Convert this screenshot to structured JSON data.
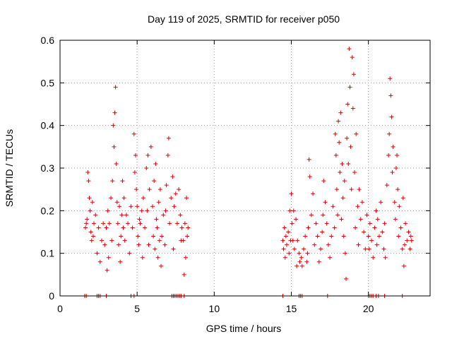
{
  "chart_data": {
    "type": "scatter",
    "title": "Day 119 of 2025, SRMTID for receiver p050",
    "xlabel": "GPS time / hours",
    "ylabel": "SRMTID / TECUs",
    "xlim": [
      0,
      24
    ],
    "ylim": [
      0,
      0.6
    ],
    "xticks": [
      0,
      5,
      10,
      15,
      20
    ],
    "xtick_labels": [
      "0",
      "5",
      "10",
      "15",
      "20"
    ],
    "yticks": [
      0,
      0.1,
      0.2,
      0.3,
      0.4,
      0.5,
      0.6
    ],
    "ytick_labels": [
      "0",
      "0.1",
      "0.2",
      "0.3",
      "0.4",
      "0.5",
      "0.6"
    ],
    "grid": true,
    "marker": "plus",
    "color": "#dd0000",
    "series": [
      {
        "name": "SRMTID",
        "points": [
          [
            1.65,
            0.16
          ],
          [
            1.7,
            0.17
          ],
          [
            1.75,
            0.18
          ],
          [
            1.8,
            0.29
          ],
          [
            1.85,
            0.27
          ],
          [
            1.9,
            0.23
          ],
          [
            1.95,
            0.2
          ],
          [
            2.0,
            0.15
          ],
          [
            2.05,
            0.13
          ],
          [
            2.1,
            0.22
          ],
          [
            2.15,
            0.14
          ],
          [
            2.2,
            0.17
          ],
          [
            2.3,
            0.19
          ],
          [
            2.4,
            0.1
          ],
          [
            2.5,
            0.16
          ],
          [
            2.6,
            0.08
          ],
          [
            2.7,
            0.13
          ],
          [
            2.8,
            0.17
          ],
          [
            2.9,
            0.12
          ],
          [
            3.0,
            0.16
          ],
          [
            3.05,
            0.06
          ],
          [
            3.1,
            0.2
          ],
          [
            3.15,
            0.09
          ],
          [
            3.2,
            0.17
          ],
          [
            3.3,
            0.23
          ],
          [
            3.35,
            0.13
          ],
          [
            3.4,
            0.27
          ],
          [
            3.45,
            0.4
          ],
          [
            3.5,
            0.35
          ],
          [
            3.55,
            0.43
          ],
          [
            3.6,
            0.49
          ],
          [
            3.65,
            0.31
          ],
          [
            3.7,
            0.22
          ],
          [
            3.75,
            0.17
          ],
          [
            3.8,
            0.12
          ],
          [
            3.85,
            0.21
          ],
          [
            3.9,
            0.08
          ],
          [
            3.95,
            0.14
          ],
          [
            4.0,
            0.19
          ],
          [
            4.05,
            0.27
          ],
          [
            4.1,
            0.16
          ],
          [
            4.15,
            0.23
          ],
          [
            4.2,
            0.13
          ],
          [
            4.3,
            0.19
          ],
          [
            4.4,
            0.17
          ],
          [
            4.5,
            0.1
          ],
          [
            4.6,
            0.21
          ],
          [
            4.7,
            0.16
          ],
          [
            4.8,
            0.38
          ],
          [
            4.85,
            0.29
          ],
          [
            4.9,
            0.33
          ],
          [
            4.95,
            0.25
          ],
          [
            5.0,
            0.21
          ],
          [
            5.05,
            0.14
          ],
          [
            5.1,
            0.12
          ],
          [
            5.15,
            0.18
          ],
          [
            5.2,
            0.17
          ],
          [
            5.3,
            0.2
          ],
          [
            5.35,
            0.09
          ],
          [
            5.4,
            0.23
          ],
          [
            5.5,
            0.16
          ],
          [
            5.6,
            0.3
          ],
          [
            5.65,
            0.2
          ],
          [
            5.7,
            0.33
          ],
          [
            5.75,
            0.12
          ],
          [
            5.8,
            0.25
          ],
          [
            5.9,
            0.35
          ],
          [
            6.0,
            0.21
          ],
          [
            6.05,
            0.14
          ],
          [
            6.1,
            0.27
          ],
          [
            6.15,
            0.11
          ],
          [
            6.2,
            0.31
          ],
          [
            6.25,
            0.18
          ],
          [
            6.3,
            0.16
          ],
          [
            6.35,
            0.09
          ],
          [
            6.4,
            0.22
          ],
          [
            6.45,
            0.13
          ],
          [
            6.5,
            0.25
          ],
          [
            6.55,
            0.07
          ],
          [
            6.6,
            0.14
          ],
          [
            6.7,
            0.19
          ],
          [
            6.8,
            0.12
          ],
          [
            6.85,
            0.2
          ],
          [
            6.9,
            0.26
          ],
          [
            7.0,
            0.33
          ],
          [
            7.05,
            0.37
          ],
          [
            7.1,
            0.17
          ],
          [
            7.2,
            0.23
          ],
          [
            7.3,
            0.28
          ],
          [
            7.35,
            0.11
          ],
          [
            7.4,
            0.21
          ],
          [
            7.5,
            0.24
          ],
          [
            7.6,
            0.17
          ],
          [
            7.7,
            0.25
          ],
          [
            7.8,
            0.19
          ],
          [
            7.85,
            0.13
          ],
          [
            7.9,
            0.16
          ],
          [
            8.0,
            0.13
          ],
          [
            8.05,
            0.05
          ],
          [
            8.1,
            0.17
          ],
          [
            8.15,
            0.09
          ],
          [
            8.2,
            0.23
          ],
          [
            8.25,
            0.14
          ],
          [
            8.3,
            0.16
          ],
          [
            14.45,
            0.13
          ],
          [
            14.5,
            0.11
          ],
          [
            14.55,
            0.16
          ],
          [
            14.6,
            0.09
          ],
          [
            14.65,
            0.14
          ],
          [
            14.7,
            0.12
          ],
          [
            14.8,
            0.15
          ],
          [
            14.85,
            0.1
          ],
          [
            14.9,
            0.2
          ],
          [
            14.95,
            0.13
          ],
          [
            15.0,
            0.24
          ],
          [
            15.05,
            0.17
          ],
          [
            15.1,
            0.13
          ],
          [
            15.15,
            0.2
          ],
          [
            15.2,
            0.11
          ],
          [
            15.3,
            0.18
          ],
          [
            15.35,
            0.07
          ],
          [
            15.4,
            0.13
          ],
          [
            15.5,
            0.1
          ],
          [
            15.55,
            0.08
          ],
          [
            15.65,
            0.09
          ],
          [
            15.7,
            0.07
          ],
          [
            15.8,
            0.11
          ],
          [
            15.9,
            0.14
          ],
          [
            16.0,
            0.08
          ],
          [
            16.05,
            0.1
          ],
          [
            16.1,
            0.16
          ],
          [
            16.15,
            0.32
          ],
          [
            16.2,
            0.28
          ],
          [
            16.3,
            0.19
          ],
          [
            16.4,
            0.24
          ],
          [
            16.5,
            0.12
          ],
          [
            16.6,
            0.17
          ],
          [
            16.7,
            0.14
          ],
          [
            16.8,
            0.08
          ],
          [
            16.9,
            0.11
          ],
          [
            17.0,
            0.15
          ],
          [
            17.05,
            0.19
          ],
          [
            17.1,
            0.27
          ],
          [
            17.2,
            0.22
          ],
          [
            17.3,
            0.17
          ],
          [
            17.4,
            0.12
          ],
          [
            17.5,
            0.09
          ],
          [
            17.6,
            0.14
          ],
          [
            17.7,
            0.21
          ],
          [
            17.8,
            0.16
          ],
          [
            17.85,
            0.38
          ],
          [
            17.9,
            0.33
          ],
          [
            17.95,
            0.25
          ],
          [
            18.0,
            0.19
          ],
          [
            18.05,
            0.41
          ],
          [
            18.1,
            0.36
          ],
          [
            18.15,
            0.29
          ],
          [
            18.2,
            0.43
          ],
          [
            18.25,
            0.18
          ],
          [
            18.3,
            0.31
          ],
          [
            18.35,
            0.23
          ],
          [
            18.4,
            0.14
          ],
          [
            18.45,
            0.27
          ],
          [
            18.5,
            0.1
          ],
          [
            18.55,
            0.04
          ],
          [
            18.6,
            0.37
          ],
          [
            18.65,
            0.45
          ],
          [
            18.7,
            0.31
          ],
          [
            18.75,
            0.58
          ],
          [
            18.8,
            0.49
          ],
          [
            18.85,
            0.35
          ],
          [
            18.9,
            0.25
          ],
          [
            18.95,
            0.56
          ],
          [
            19.0,
            0.44
          ],
          [
            19.05,
            0.52
          ],
          [
            19.1,
            0.29
          ],
          [
            19.15,
            0.16
          ],
          [
            19.2,
            0.38
          ],
          [
            19.3,
            0.21
          ],
          [
            19.35,
            0.12
          ],
          [
            19.4,
            0.25
          ],
          [
            19.5,
            0.18
          ],
          [
            19.6,
            0.22
          ],
          [
            19.7,
            0.15
          ],
          [
            19.8,
            0.11
          ],
          [
            19.9,
            0.19
          ],
          [
            20.0,
            0.14
          ],
          [
            20.05,
            0.11
          ],
          [
            20.1,
            0.17
          ],
          [
            20.2,
            0.13
          ],
          [
            20.3,
            0.09
          ],
          [
            20.4,
            0.16
          ],
          [
            20.5,
            0.2
          ],
          [
            20.55,
            0.12
          ],
          [
            20.6,
            0.18
          ],
          [
            20.7,
            0.14
          ],
          [
            20.8,
            0.22
          ],
          [
            20.9,
            0.15
          ],
          [
            21.0,
            0.11
          ],
          [
            21.05,
            0.17
          ],
          [
            21.1,
            0.09
          ],
          [
            21.2,
            0.26
          ],
          [
            21.3,
            0.33
          ],
          [
            21.35,
            0.38
          ],
          [
            21.4,
            0.51
          ],
          [
            21.45,
            0.47
          ],
          [
            21.5,
            0.42
          ],
          [
            21.55,
            0.29
          ],
          [
            21.6,
            0.35
          ],
          [
            21.7,
            0.22
          ],
          [
            21.75,
            0.18
          ],
          [
            21.8,
            0.3
          ],
          [
            21.85,
            0.33
          ],
          [
            21.9,
            0.25
          ],
          [
            21.95,
            0.14
          ],
          [
            22.0,
            0.21
          ],
          [
            22.1,
            0.16
          ],
          [
            22.2,
            0.11
          ],
          [
            22.25,
            0.23
          ],
          [
            22.3,
            0.07
          ],
          [
            22.35,
            0.12
          ],
          [
            22.4,
            0.17
          ],
          [
            22.5,
            0.13
          ],
          [
            22.6,
            0.15
          ],
          [
            22.7,
            0.11
          ],
          [
            22.75,
            0.14
          ],
          [
            22.8,
            0.13
          ]
        ],
        "zero_points_x": [
          1.6,
          1.7,
          2.4,
          2.5,
          2.6,
          3.0,
          4.6,
          4.8,
          7.25,
          7.35,
          7.45,
          7.55,
          7.65,
          7.75,
          7.85,
          8.05,
          14.45,
          15.5,
          15.6,
          15.7,
          17.35,
          20.0,
          20.1,
          20.2,
          20.3,
          20.5,
          20.65,
          21.05,
          22.2
        ]
      }
    ]
  }
}
